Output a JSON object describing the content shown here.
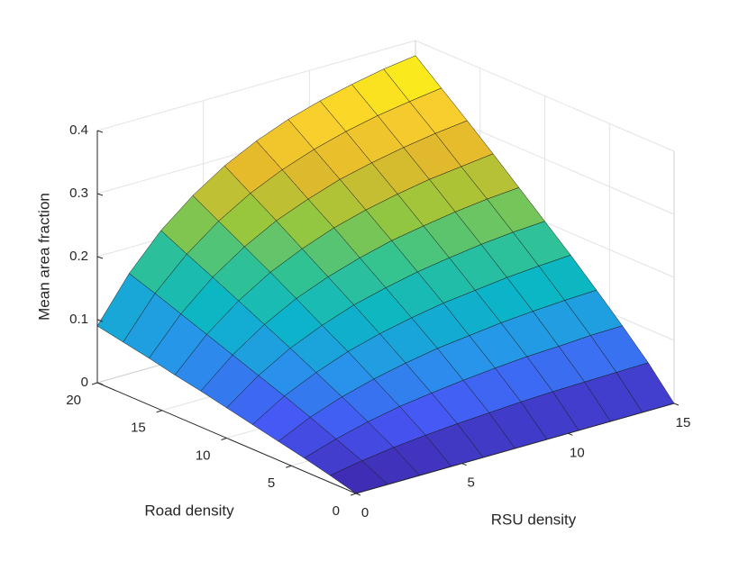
{
  "chart_data": {
    "type": "surface",
    "xlabel": "RSU density",
    "ylabel": "Road density",
    "zlabel": "Mean area fraction",
    "x": [
      0,
      1.5,
      3,
      4.5,
      6,
      7.5,
      9,
      10.5,
      12,
      13.5,
      15
    ],
    "y": [
      0,
      2,
      4,
      6,
      8,
      10,
      12,
      14,
      16,
      18,
      20
    ],
    "z": [
      [
        0,
        0,
        0,
        0,
        0,
        0,
        0,
        0,
        0,
        0,
        0
      ],
      [
        0.011,
        0.02,
        0.027,
        0.032,
        0.036,
        0.039,
        0.042,
        0.044,
        0.045,
        0.046,
        0.047
      ],
      [
        0.021,
        0.037,
        0.05,
        0.06,
        0.067,
        0.073,
        0.078,
        0.082,
        0.084,
        0.087,
        0.088
      ],
      [
        0.03,
        0.054,
        0.072,
        0.086,
        0.097,
        0.106,
        0.112,
        0.118,
        0.122,
        0.125,
        0.127
      ],
      [
        0.039,
        0.07,
        0.093,
        0.112,
        0.126,
        0.137,
        0.146,
        0.152,
        0.158,
        0.162,
        0.165
      ],
      [
        0.048,
        0.085,
        0.114,
        0.136,
        0.154,
        0.167,
        0.178,
        0.186,
        0.193,
        0.198,
        0.201
      ],
      [
        0.057,
        0.1,
        0.134,
        0.161,
        0.181,
        0.197,
        0.21,
        0.219,
        0.227,
        0.233,
        0.237
      ],
      [
        0.065,
        0.115,
        0.154,
        0.185,
        0.208,
        0.227,
        0.241,
        0.252,
        0.261,
        0.267,
        0.273
      ],
      [
        0.074,
        0.13,
        0.174,
        0.208,
        0.235,
        0.255,
        0.272,
        0.284,
        0.294,
        0.302,
        0.308
      ],
      [
        0.082,
        0.145,
        0.193,
        0.231,
        0.261,
        0.284,
        0.302,
        0.316,
        0.327,
        0.335,
        0.342
      ],
      [
        0.09,
        0.159,
        0.213,
        0.254,
        0.287,
        0.312,
        0.332,
        0.347,
        0.359,
        0.369,
        0.376
      ]
    ],
    "xlim": [
      0,
      15
    ],
    "ylim": [
      0,
      20
    ],
    "zlim": [
      0,
      0.4
    ],
    "xticks": [
      0,
      5,
      10,
      15
    ],
    "yticks": [
      0,
      5,
      10,
      15,
      20
    ],
    "zticks": [
      0,
      0.1,
      0.2,
      0.3,
      0.4
    ],
    "grid": true,
    "edgecolor": "#1a1a1a",
    "colormap": [
      "#3e26a8",
      "#4657f5",
      "#2796ea",
      "#0ab6c6",
      "#35c38f",
      "#9bc63a",
      "#e3b92c",
      "#fcd12e",
      "#f9fb0e"
    ]
  }
}
